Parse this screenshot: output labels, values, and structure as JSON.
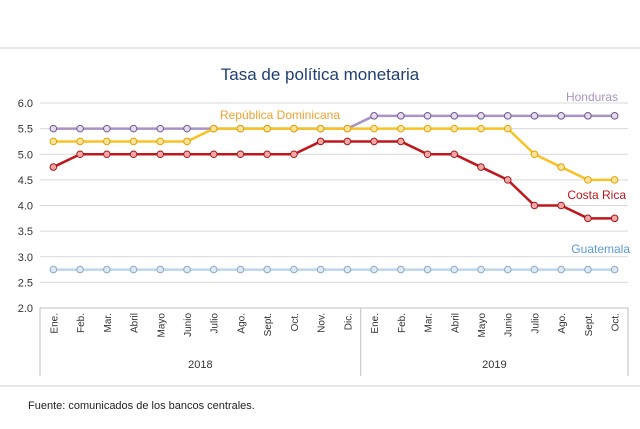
{
  "chart_data": {
    "type": "line",
    "title": "Tasa de política monetaria",
    "categories": [
      "Ene.",
      "Feb.",
      "Mar.",
      "Abril",
      "Mayo",
      "Junio",
      "Julio",
      "Ago.",
      "Sept.",
      "Oct.",
      "Nov.",
      "Dic.",
      "Ene.",
      "Feb.",
      "Mar.",
      "Abril",
      "Mayo",
      "Junio",
      "Julio",
      "Ago.",
      "Sept.",
      "Oct."
    ],
    "groups": [
      {
        "label": "2018",
        "start": 0,
        "end": 11
      },
      {
        "label": "2019",
        "start": 12,
        "end": 21
      }
    ],
    "ylim": [
      2.0,
      6.0
    ],
    "yticks": [
      "2.0",
      "2.5",
      "3.0",
      "3.5",
      "4.0",
      "4.5",
      "5.0",
      "5.5",
      "6.0"
    ],
    "grid": true,
    "series": [
      {
        "name": "Honduras",
        "color": "#a993c6",
        "label_color": "#a993c6",
        "values": [
          5.5,
          5.5,
          5.5,
          5.5,
          5.5,
          5.5,
          5.5,
          5.5,
          5.5,
          5.5,
          5.5,
          5.5,
          5.75,
          5.75,
          5.75,
          5.75,
          5.75,
          5.75,
          5.75,
          5.75,
          5.75,
          5.75
        ]
      },
      {
        "name": "República Dominicana",
        "color": "#f7c325",
        "label_color": "#f0a030",
        "values": [
          5.25,
          5.25,
          5.25,
          5.25,
          5.25,
          5.25,
          5.5,
          5.5,
          5.5,
          5.5,
          5.5,
          5.5,
          5.5,
          5.5,
          5.5,
          5.5,
          5.5,
          5.5,
          5.0,
          4.75,
          4.5,
          4.5
        ]
      },
      {
        "name": "Costa Rica",
        "color": "#c0161c",
        "label_color": "#c0161c",
        "values": [
          4.75,
          5.0,
          5.0,
          5.0,
          5.0,
          5.0,
          5.0,
          5.0,
          5.0,
          5.0,
          5.25,
          5.25,
          5.25,
          5.25,
          5.0,
          5.0,
          4.75,
          4.5,
          4.0,
          4.0,
          3.75,
          3.75
        ]
      },
      {
        "name": "Guatemala",
        "color": "#bcd6ee",
        "label_color": "#5b9bd5",
        "values": [
          2.75,
          2.75,
          2.75,
          2.75,
          2.75,
          2.75,
          2.75,
          2.75,
          2.75,
          2.75,
          2.75,
          2.75,
          2.75,
          2.75,
          2.75,
          2.75,
          2.75,
          2.75,
          2.75,
          2.75,
          2.75,
          2.75
        ]
      }
    ]
  },
  "source": "Fuente: comunicados de los bancos centrales.",
  "colors": {
    "title": "#1f3f73",
    "grid": "#d9d9d9",
    "axis": "#bfbfbf",
    "rule": "#d0d0d0"
  }
}
